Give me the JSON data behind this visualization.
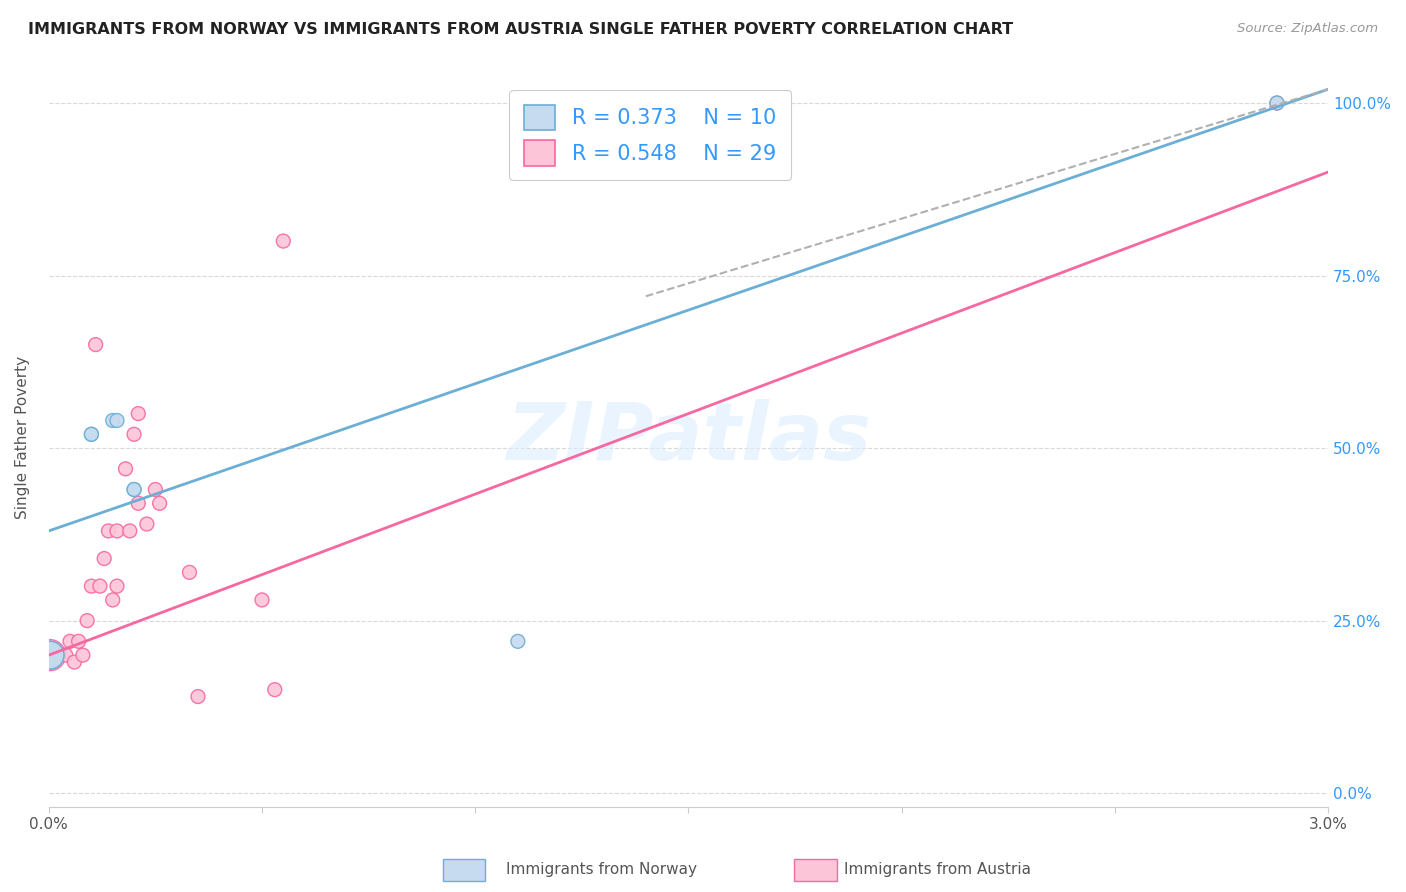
{
  "title": "IMMIGRANTS FROM NORWAY VS IMMIGRANTS FROM AUSTRIA SINGLE FATHER POVERTY CORRELATION CHART",
  "source": "Source: ZipAtlas.com",
  "ylabel": "Single Father Poverty",
  "norway_color": "#6baed6",
  "norway_fill": "#c6dbef",
  "austria_color": "#f768a1",
  "austria_fill": "#fcc5d8",
  "norway_R": 0.373,
  "norway_N": 10,
  "austria_R": 0.548,
  "austria_N": 29,
  "legend_color": "#3399ff",
  "watermark": "ZIPatlas",
  "norway_points": [
    [
      0.003,
      0.2
    ],
    [
      0.003,
      0.2
    ],
    [
      0.1,
      0.52
    ],
    [
      0.1,
      0.52
    ],
    [
      0.15,
      0.54
    ],
    [
      0.16,
      0.54
    ],
    [
      0.2,
      0.44
    ],
    [
      0.2,
      0.44
    ],
    [
      1.1,
      0.22
    ],
    [
      2.88,
      1.0
    ]
  ],
  "austria_points": [
    [
      0.003,
      0.2
    ],
    [
      0.04,
      0.2
    ],
    [
      0.05,
      0.22
    ],
    [
      0.06,
      0.19
    ],
    [
      0.07,
      0.22
    ],
    [
      0.08,
      0.2
    ],
    [
      0.09,
      0.25
    ],
    [
      0.1,
      0.3
    ],
    [
      0.11,
      0.65
    ],
    [
      0.12,
      0.3
    ],
    [
      0.13,
      0.34
    ],
    [
      0.14,
      0.38
    ],
    [
      0.15,
      0.28
    ],
    [
      0.16,
      0.3
    ],
    [
      0.16,
      0.38
    ],
    [
      0.18,
      0.47
    ],
    [
      0.19,
      0.38
    ],
    [
      0.2,
      0.52
    ],
    [
      0.21,
      0.55
    ],
    [
      0.21,
      0.42
    ],
    [
      0.23,
      0.39
    ],
    [
      0.25,
      0.44
    ],
    [
      0.26,
      0.42
    ],
    [
      0.33,
      0.32
    ],
    [
      0.35,
      0.14
    ],
    [
      0.5,
      0.28
    ],
    [
      0.53,
      0.15
    ],
    [
      0.55,
      0.8
    ],
    [
      2.88,
      1.0
    ]
  ],
  "norway_sizes": [
    400,
    400,
    100,
    100,
    100,
    100,
    100,
    100,
    100,
    100
  ],
  "austria_sizes": [
    500,
    100,
    100,
    100,
    100,
    100,
    100,
    100,
    100,
    100,
    100,
    100,
    100,
    100,
    100,
    100,
    100,
    100,
    100,
    100,
    100,
    100,
    100,
    100,
    100,
    100,
    100,
    100,
    100
  ],
  "norway_line": [
    0.0,
    0.38,
    0.03,
    1.02
  ],
  "norway_dash": [
    0.014,
    0.72,
    0.03,
    1.02
  ],
  "austria_line": [
    0.0,
    0.2,
    0.03,
    0.9
  ],
  "xlim": [
    0.0,
    0.03
  ],
  "ylim": [
    -0.02,
    1.05
  ],
  "yticks": [
    0.0,
    0.25,
    0.5,
    0.75,
    1.0
  ],
  "ytick_labels": [
    "0.0%",
    "25.0%",
    "50.0%",
    "75.0%",
    "100.0%"
  ],
  "xtick_positions": [
    0.0,
    0.005,
    0.01,
    0.015,
    0.02,
    0.025,
    0.03
  ],
  "background_color": "#ffffff",
  "grid_color": "#d9d9d9",
  "bottom_legend_norway": "Immigrants from Norway",
  "bottom_legend_austria": "Immigrants from Austria"
}
